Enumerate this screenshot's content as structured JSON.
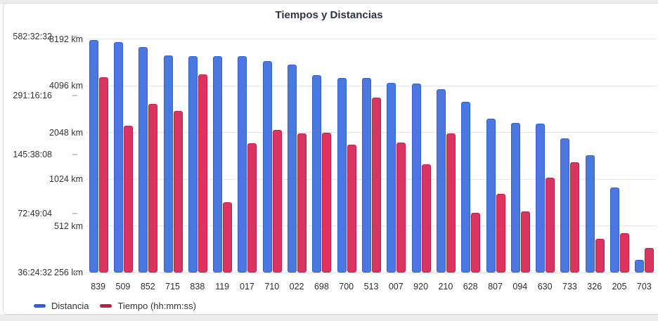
{
  "chart_data": {
    "type": "bar",
    "title": "Tiempos y Distancias",
    "categories": [
      "839",
      "509",
      "852",
      "715",
      "838",
      "119",
      "017",
      "710",
      "022",
      "698",
      "700",
      "513",
      "007",
      "920",
      "210",
      "628",
      "807",
      "094",
      "630",
      "733",
      "326",
      "205",
      "703"
    ],
    "series": [
      {
        "name": "Distancia",
        "unit": "km",
        "fill_color": "#4a78e0",
        "border_color": "#2f5fd6",
        "values_km": [
          8100,
          7800,
          7300,
          6400,
          6350,
          6330,
          6330,
          5900,
          5600,
          4800,
          4600,
          4570,
          4250,
          4230,
          3900,
          3230,
          2500,
          2350,
          2340,
          1880,
          1460,
          900,
          310
        ]
      },
      {
        "name": "Tiempo (hh:mm:ss)",
        "unit": "hh:mm:ss",
        "fill_color": "#da3560",
        "border_color": "#c01d4a",
        "values_time": [
          "361:00:00",
          "205:00:00",
          "265:00:00",
          "242:30:00",
          "373:00:00",
          "83:30:00",
          "166:30:00",
          "194:00:00",
          "187:00:00",
          "188:30:00",
          "164:00:00",
          "284:00:00",
          "168:00:00",
          "130:00:00",
          "187:30:00",
          "73:30:00",
          "91:30:00",
          "74:30:00",
          "111:00:00",
          "133:30:00",
          "54:00:00",
          "58:00:00",
          "48:30:00"
        ]
      }
    ],
    "axes": {
      "time_axis": {
        "scale": "log2",
        "ticks": [
          "582:32:32",
          "291:16:16",
          "145:38:08",
          "72:49:04",
          "36:24:32"
        ],
        "min": "36:24:32",
        "max": "582:32:32"
      },
      "distance_axis": {
        "scale": "log2",
        "ticks": [
          "8192 km",
          "4096 km",
          "2048 km",
          "1024 km",
          "512 km",
          "256 km"
        ],
        "min_km": 256,
        "max_km": 8192
      }
    },
    "grid": true,
    "legend_position": "bottom-left"
  },
  "page": {
    "grid_color": "#e6e6e6",
    "text_color": "#333333",
    "title_color": "#2f3346"
  }
}
